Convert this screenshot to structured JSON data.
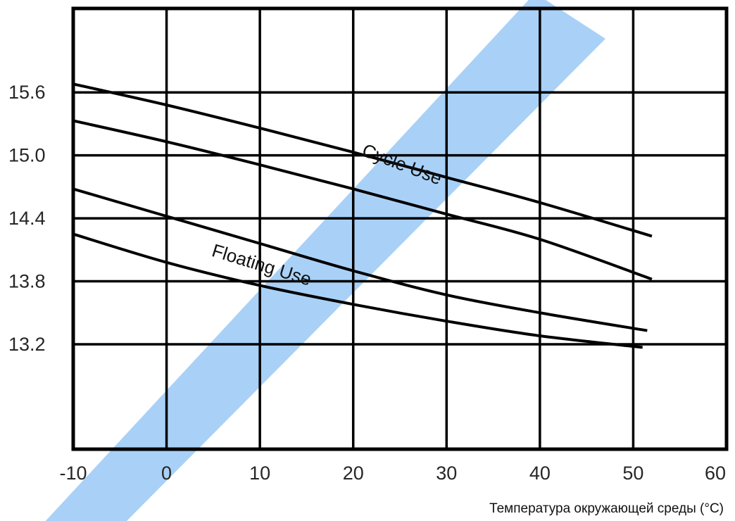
{
  "chart_data": {
    "type": "line",
    "xlabel": "Температура окружающей среды (°C)",
    "ylabel": "",
    "xlim": [
      -10,
      60
    ],
    "ylim": [
      12.2,
      16.4
    ],
    "x_ticks": [
      "-10",
      "0",
      "10",
      "20",
      "30",
      "40",
      "50",
      "60"
    ],
    "y_ticks": [
      "15.6",
      "15.0",
      "14.4",
      "13.8",
      "13.2"
    ],
    "grid": true,
    "bands": [
      {
        "label": "Cycle Use",
        "upper": {
          "x": [
            -10,
            0,
            10,
            20,
            30,
            40,
            52
          ],
          "y": [
            15.68,
            15.48,
            15.26,
            15.03,
            14.79,
            14.55,
            14.23
          ]
        },
        "lower": {
          "x": [
            -10,
            0,
            10,
            20,
            30,
            40,
            52
          ],
          "y": [
            15.33,
            15.13,
            14.91,
            14.68,
            14.44,
            14.2,
            13.82
          ]
        }
      },
      {
        "label": "Floating Use",
        "upper": {
          "x": [
            -10,
            0,
            10,
            20,
            30,
            40,
            51.5
          ],
          "y": [
            14.68,
            14.42,
            14.16,
            13.9,
            13.67,
            13.5,
            13.33
          ]
        },
        "lower": {
          "x": [
            -10,
            0,
            10,
            20,
            30,
            40,
            51
          ],
          "y": [
            14.25,
            13.98,
            13.76,
            13.58,
            13.42,
            13.28,
            13.17
          ]
        }
      }
    ],
    "colors": {
      "curve": "#000000",
      "grid": "#000000",
      "watermark": "#a9d1f7"
    }
  }
}
